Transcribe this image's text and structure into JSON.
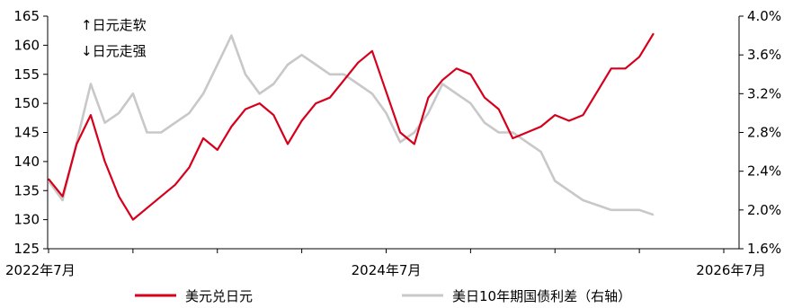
{
  "chart_data": {
    "type": "line",
    "title": "",
    "annotations": [
      "↑日元走软",
      "↓日元走强"
    ],
    "x_axis": {
      "ticks": [
        "2022年7月",
        "2024年7月",
        "2026年7月"
      ]
    },
    "left_axis": {
      "ylim": [
        125,
        165
      ],
      "ticks": [
        "125",
        "130",
        "135",
        "140",
        "145",
        "150",
        "155",
        "160",
        "165"
      ]
    },
    "right_axis": {
      "ylim": [
        1.6,
        4.0
      ],
      "ticks": [
        "1.6%",
        "2.0%",
        "2.4%",
        "2.8%",
        "3.2%",
        "3.6%",
        "4.0%"
      ]
    },
    "grid": false,
    "legend_position": "bottom",
    "series": [
      {
        "name": "美元兑日元",
        "axis": "left",
        "color": "#d6001c",
        "x": [
          "2022-07",
          "2022-08",
          "2022-09",
          "2022-10",
          "2022-11",
          "2022-12",
          "2023-01",
          "2023-02",
          "2023-03",
          "2023-04",
          "2023-05",
          "2023-06",
          "2023-07",
          "2023-08",
          "2023-09",
          "2023-10",
          "2023-11",
          "2023-12",
          "2024-01",
          "2024-02",
          "2024-03",
          "2024-04",
          "2024-05",
          "2024-06",
          "2024-07",
          "2024-08",
          "2024-09",
          "2024-10",
          "2024-11",
          "2024-12",
          "2025-01",
          "2025-02",
          "2025-03",
          "2025-04",
          "2025-05",
          "2025-06",
          "2025-07",
          "2025-08",
          "2025-09",
          "2025-10",
          "2025-11",
          "2025-12",
          "2026-01",
          "2026-02"
        ],
        "values": [
          137,
          134,
          143,
          148,
          140,
          134,
          130,
          132,
          134,
          136,
          139,
          144,
          142,
          146,
          149,
          150,
          148,
          143,
          147,
          150,
          151,
          154,
          157,
          159,
          152,
          145,
          143,
          151,
          154,
          156,
          155,
          151,
          149,
          144,
          145,
          146,
          148,
          147,
          148,
          152,
          156,
          156,
          158,
          162
        ]
      },
      {
        "name": "美日10年期国债利差（右轴）",
        "axis": "right",
        "color": "#c8c8c8",
        "x": [
          "2022-07",
          "2022-08",
          "2022-09",
          "2022-10",
          "2022-11",
          "2022-12",
          "2023-01",
          "2023-02",
          "2023-03",
          "2023-04",
          "2023-05",
          "2023-06",
          "2023-07",
          "2023-08",
          "2023-09",
          "2023-10",
          "2023-11",
          "2023-12",
          "2024-01",
          "2024-02",
          "2024-03",
          "2024-04",
          "2024-05",
          "2024-06",
          "2024-07",
          "2024-08",
          "2024-09",
          "2024-10",
          "2024-11",
          "2024-12",
          "2025-01",
          "2025-02",
          "2025-03",
          "2025-04",
          "2025-05",
          "2025-06",
          "2025-07",
          "2025-08",
          "2025-09",
          "2025-10",
          "2025-11",
          "2025-12",
          "2026-01",
          "2026-02"
        ],
        "values": [
          2.3,
          2.1,
          2.7,
          3.3,
          2.9,
          3.0,
          3.2,
          2.8,
          2.8,
          2.9,
          3.0,
          3.2,
          3.5,
          3.8,
          3.4,
          3.2,
          3.3,
          3.5,
          3.6,
          3.5,
          3.4,
          3.4,
          3.3,
          3.2,
          3.0,
          2.7,
          2.8,
          3.0,
          3.3,
          3.2,
          3.1,
          2.9,
          2.8,
          2.8,
          2.7,
          2.6,
          2.3,
          2.2,
          2.1,
          2.05,
          2.0,
          2.0,
          2.0,
          1.95
        ]
      }
    ]
  }
}
